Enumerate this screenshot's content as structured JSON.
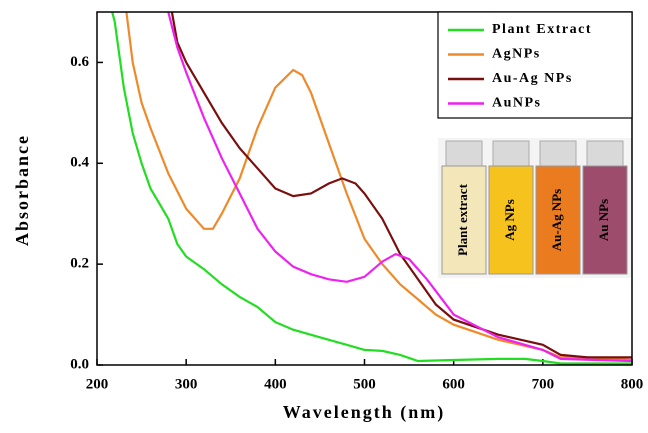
{
  "chart_data": {
    "type": "line",
    "x_label": "Wavelength (nm)",
    "y_label": "Absorbance",
    "xlim": [
      200,
      800
    ],
    "ylim": [
      0,
      0.7
    ],
    "xticks": [
      200,
      300,
      400,
      500,
      600,
      700,
      800
    ],
    "yticks": [
      {
        "value": 0,
        "label": "0.0"
      },
      0.2,
      0.4,
      0.6
    ],
    "grid": false,
    "legend": "top-right",
    "series": [
      {
        "name": "Plant Extract",
        "color": "#22dd22",
        "x": [
          217,
          220,
          230,
          240,
          250,
          260,
          270,
          280,
          290,
          300,
          320,
          340,
          360,
          380,
          400,
          420,
          450,
          480,
          500,
          520,
          540,
          560,
          600,
          650,
          680,
          700,
          720,
          750,
          800
        ],
        "values": [
          0.7,
          0.68,
          0.55,
          0.46,
          0.4,
          0.35,
          0.32,
          0.29,
          0.24,
          0.215,
          0.19,
          0.16,
          0.135,
          0.115,
          0.085,
          0.07,
          0.055,
          0.04,
          0.03,
          0.028,
          0.02,
          0.008,
          0.01,
          0.012,
          0.012,
          0.008,
          0.003,
          0.003,
          0.003
        ]
      },
      {
        "name": "AgNPs",
        "color": "#ee8a2a",
        "x": [
          233,
          240,
          250,
          260,
          280,
          300,
          320,
          330,
          340,
          360,
          380,
          400,
          420,
          430,
          440,
          460,
          480,
          500,
          520,
          540,
          560,
          580,
          600,
          650,
          700,
          720,
          750,
          800
        ],
        "values": [
          0.7,
          0.6,
          0.52,
          0.47,
          0.38,
          0.31,
          0.27,
          0.27,
          0.3,
          0.37,
          0.47,
          0.55,
          0.585,
          0.575,
          0.54,
          0.44,
          0.34,
          0.25,
          0.2,
          0.16,
          0.13,
          0.1,
          0.08,
          0.05,
          0.03,
          0.015,
          0.015,
          0.01
        ]
      },
      {
        "name": "Au-Ag NPs",
        "color": "#7a0f0f",
        "x": [
          284,
          290,
          300,
          320,
          340,
          360,
          380,
          400,
          420,
          440,
          460,
          475,
          490,
          500,
          520,
          540,
          560,
          580,
          600,
          650,
          700,
          720,
          750,
          800
        ],
        "values": [
          0.7,
          0.64,
          0.6,
          0.54,
          0.48,
          0.43,
          0.39,
          0.35,
          0.335,
          0.34,
          0.36,
          0.37,
          0.36,
          0.34,
          0.29,
          0.22,
          0.17,
          0.12,
          0.09,
          0.06,
          0.04,
          0.02,
          0.015,
          0.015
        ]
      },
      {
        "name": "AuNPs",
        "color": "#ee22ee",
        "x": [
          280,
          290,
          300,
          320,
          340,
          360,
          380,
          400,
          420,
          440,
          460,
          480,
          500,
          520,
          535,
          550,
          570,
          600,
          650,
          700,
          720,
          760,
          800
        ],
        "values": [
          0.7,
          0.63,
          0.58,
          0.49,
          0.41,
          0.34,
          0.27,
          0.225,
          0.195,
          0.18,
          0.17,
          0.165,
          0.175,
          0.205,
          0.22,
          0.21,
          0.17,
          0.1,
          0.055,
          0.03,
          0.012,
          0.01,
          0.008
        ]
      }
    ],
    "inset_labels": [
      "Plant extract",
      "Ag NPs",
      "Au-Ag NPs",
      "Au NPs"
    ]
  }
}
